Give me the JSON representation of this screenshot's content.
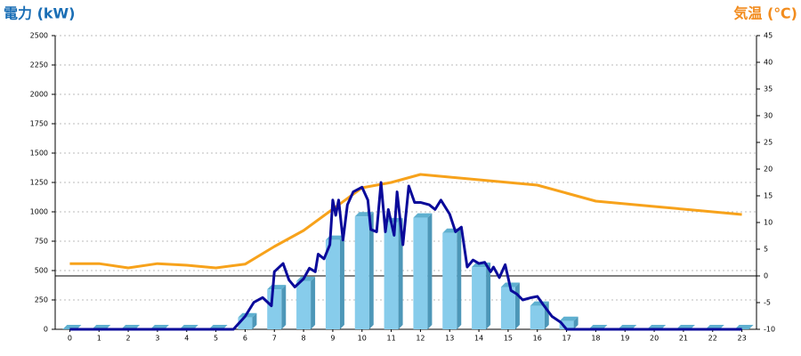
{
  "chart_data": {
    "type": "bar",
    "y_title": "電力 (kW)",
    "y2_title": "気温 (℃)",
    "y_title_color": "#1a6eb5",
    "y2_title_color": "#f28c1e",
    "categories": [
      "0",
      "1",
      "2",
      "3",
      "4",
      "5",
      "6",
      "7",
      "8",
      "9",
      "10",
      "11",
      "12",
      "13",
      "14",
      "15",
      "16",
      "17",
      "18",
      "19",
      "20",
      "21",
      "22",
      "23"
    ],
    "xlim": [
      -0.5,
      23.5
    ],
    "ylim": [
      0,
      2500
    ],
    "yticks": [
      0,
      250,
      500,
      750,
      1000,
      1250,
      1500,
      1750,
      2000,
      2250,
      2500
    ],
    "y2lim": [
      -10,
      45
    ],
    "y2ticks": [
      -10,
      -5,
      0,
      5,
      10,
      15,
      20,
      25,
      30,
      35,
      40,
      45
    ],
    "grid": true,
    "series": [
      {
        "type": "bar",
        "color": "#87cceb",
        "values": [
          0,
          0,
          0,
          0,
          0,
          0,
          100,
          340,
          410,
          760,
          960,
          910,
          950,
          820,
          530,
          360,
          200,
          70,
          0,
          0,
          0,
          0,
          0,
          0
        ]
      },
      {
        "type": "line",
        "axis": "y2",
        "color": "#f7a21b",
        "values": [
          2.3,
          2.3,
          1.5,
          2.3,
          2,
          1.5,
          2.2,
          5.5,
          8.5,
          12.5,
          16.5,
          17.5,
          19,
          18.5,
          18,
          17.5,
          17,
          15.5,
          14,
          13.5,
          13,
          12.5,
          12,
          11.5
        ]
      },
      {
        "type": "line",
        "color": "#0a0a9a",
        "x": [
          0,
          5.6,
          6,
          6.3,
          6.6,
          6.9,
          7,
          7.3,
          7.5,
          7.7,
          8,
          8.2,
          8.4,
          8.5,
          8.7,
          8.9,
          9,
          9.1,
          9.2,
          9.35,
          9.5,
          9.7,
          10,
          10.2,
          10.3,
          10.5,
          10.65,
          10.8,
          10.9,
          11.1,
          11.2,
          11.4,
          11.6,
          11.8,
          12,
          12.3,
          12.5,
          12.7,
          13,
          13.2,
          13.4,
          13.6,
          13.8,
          14,
          14.2,
          14.4,
          14.5,
          14.7,
          14.9,
          15.1,
          15.3,
          15.5,
          15.8,
          16,
          16.2,
          16.5,
          16.8,
          17,
          23
        ],
        "values": [
          0,
          0,
          110,
          230,
          270,
          200,
          490,
          560,
          420,
          360,
          430,
          520,
          490,
          640,
          600,
          720,
          1100,
          970,
          1100,
          760,
          1060,
          1170,
          1210,
          1100,
          850,
          830,
          1250,
          830,
          1020,
          800,
          1170,
          720,
          1220,
          1080,
          1080,
          1060,
          1020,
          1100,
          980,
          830,
          870,
          530,
          590,
          560,
          570,
          490,
          530,
          440,
          550,
          330,
          300,
          250,
          270,
          280,
          210,
          110,
          60,
          0,
          0
        ]
      }
    ]
  }
}
